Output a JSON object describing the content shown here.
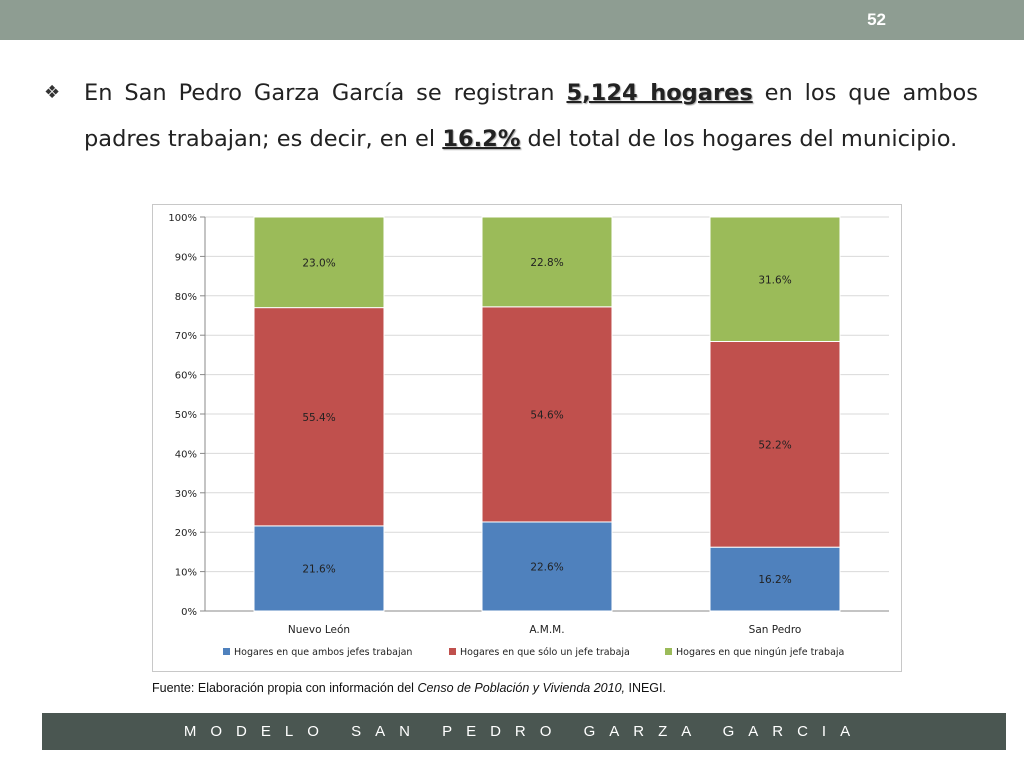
{
  "slide": {
    "page_number": "52",
    "bullet_icon": "four-diamond-bullet-icon",
    "text_before_1": "En San Pedro Garza García se registran ",
    "highlight_1": "5,124 hogares",
    "text_between": " en los que ambos padres trabajan; es decir, en el ",
    "highlight_2": "16.2%",
    "text_after": " del total de los hogares del municipio.",
    "source_prefix": "Fuente: Elaboración propia con información del ",
    "source_italic": "Censo de Población y Vivienda  2010,",
    "source_suffix": " INEGI.",
    "footer": "MODELO SAN PEDRO GARZA GARCIA"
  },
  "chart_data": {
    "type": "bar",
    "stacked": true,
    "percent": true,
    "categories": [
      "Nuevo León",
      "A.M.M.",
      "San Pedro"
    ],
    "series": [
      {
        "name": "Hogares en que ambos jefes trabajan",
        "values": [
          21.6,
          22.6,
          16.2
        ],
        "labels": [
          "21.6%",
          "22.6%",
          "16.2%"
        ],
        "color": "#4f81bd"
      },
      {
        "name": "Hogares en que sólo un jefe trabaja",
        "values": [
          55.4,
          54.6,
          52.2
        ],
        "labels": [
          "55.4%",
          "54.6%",
          "52.2%"
        ],
        "color": "#c0504d"
      },
      {
        "name": "Hogares en que ningún jefe trabaja",
        "values": [
          23.0,
          22.8,
          31.6
        ],
        "labels": [
          "23.0%",
          "22.8%",
          "31.6%"
        ],
        "color": "#9bbb59"
      }
    ],
    "y_ticks": [
      "0%",
      "10%",
      "20%",
      "30%",
      "40%",
      "50%",
      "60%",
      "70%",
      "80%",
      "90%",
      "100%"
    ],
    "ylim": [
      0,
      100
    ],
    "grid": true,
    "legend": "bottom"
  }
}
